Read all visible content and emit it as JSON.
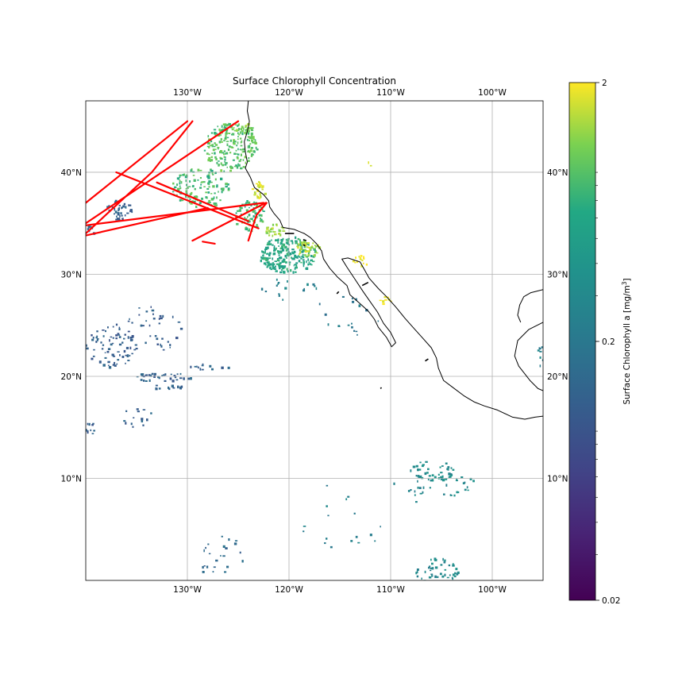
{
  "map": {
    "title": "Surface Chlorophyll Concentration",
    "lon_range": [
      -140,
      -95
    ],
    "lat_range": [
      0,
      47
    ],
    "lon_ticks": [
      {
        "value": -130,
        "label": "130°W"
      },
      {
        "value": -120,
        "label": "120°W"
      },
      {
        "value": -110,
        "label": "110°W"
      },
      {
        "value": -100,
        "label": "100°W"
      }
    ],
    "lat_ticks": [
      {
        "value": 10,
        "label": "10°N"
      },
      {
        "value": 20,
        "label": "20°N"
      },
      {
        "value": 30,
        "label": "30°N"
      },
      {
        "value": 40,
        "label": "40°N"
      }
    ],
    "grid": true,
    "colormap": "viridis",
    "track_color": "#ff0000",
    "coast_color": "#000000",
    "grid_color": "#b0b0b0"
  },
  "colorbar": {
    "label": "Surface Chlorophyll a [mg/m",
    "label_sup": "3",
    "label_end": "]",
    "scale": "log",
    "range": [
      0.02,
      2
    ],
    "ticks": [
      {
        "value": 0.02,
        "label": "0.02"
      },
      {
        "value": 0.2,
        "label": "0.2"
      },
      {
        "value": 2,
        "label": "2"
      }
    ]
  },
  "tracks": [
    [
      [
        -140,
        37.0
      ],
      [
        -130,
        45.0
      ]
    ],
    [
      [
        -140,
        34.0
      ],
      [
        -133.5,
        40.0
      ],
      [
        -129.5,
        45.0
      ]
    ],
    [
      [
        -140,
        35.0
      ],
      [
        -125,
        45.0
      ]
    ],
    [
      [
        -140,
        33.8
      ],
      [
        -128,
        36.5
      ]
    ],
    [
      [
        -140,
        34.8
      ],
      [
        -122.5,
        37.0
      ]
    ],
    [
      [
        -137,
        40.0
      ],
      [
        -123,
        34.5
      ]
    ],
    [
      [
        -133,
        39.0
      ],
      [
        -124,
        35.2
      ]
    ],
    [
      [
        -129.5,
        33.3
      ],
      [
        -122.3,
        37.0
      ]
    ],
    [
      [
        -128.5,
        33.2
      ],
      [
        -127.3,
        33.0
      ]
    ],
    [
      [
        -124,
        33.3
      ],
      [
        -123.2,
        35.8
      ],
      [
        -122.2,
        37.0
      ]
    ]
  ],
  "coastlines": [
    [
      [
        -124.0,
        47.0
      ],
      [
        -124.1,
        46.0
      ],
      [
        -123.9,
        45.0
      ],
      [
        -124.1,
        44.0
      ],
      [
        -124.4,
        43.0
      ],
      [
        -124.3,
        42.0
      ],
      [
        -124.1,
        41.0
      ],
      [
        -124.3,
        40.4
      ],
      [
        -123.8,
        39.5
      ],
      [
        -123.4,
        38.5
      ],
      [
        -122.5,
        37.8
      ],
      [
        -122.0,
        37.2
      ],
      [
        -121.9,
        36.6
      ],
      [
        -121.5,
        36.0
      ],
      [
        -120.9,
        35.3
      ],
      [
        -120.6,
        34.6
      ],
      [
        -119.5,
        34.4
      ],
      [
        -118.5,
        34.0
      ],
      [
        -117.9,
        33.6
      ],
      [
        -117.3,
        33.0
      ],
      [
        -116.8,
        32.3
      ],
      [
        -116.6,
        31.5
      ],
      [
        -116.0,
        30.6
      ],
      [
        -115.2,
        29.7
      ],
      [
        -114.3,
        28.9
      ],
      [
        -114.0,
        28.0
      ],
      [
        -113.2,
        27.3
      ],
      [
        -112.2,
        26.4
      ],
      [
        -111.6,
        25.6
      ],
      [
        -111.2,
        24.8
      ],
      [
        -110.4,
        23.8
      ],
      [
        -109.9,
        22.9
      ],
      [
        -109.5,
        23.3
      ],
      [
        -110.0,
        24.3
      ],
      [
        -110.7,
        25.2
      ],
      [
        -111.3,
        26.3
      ],
      [
        -112.0,
        27.3
      ],
      [
        -112.7,
        28.3
      ],
      [
        -113.5,
        29.5
      ],
      [
        -114.3,
        30.7
      ],
      [
        -114.8,
        31.5
      ],
      [
        -114.2,
        31.6
      ],
      [
        -113.0,
        31.2
      ],
      [
        -112.1,
        29.6
      ],
      [
        -111.2,
        28.6
      ],
      [
        -110.4,
        27.8
      ],
      [
        -109.5,
        26.8
      ],
      [
        -108.6,
        25.7
      ],
      [
        -107.8,
        24.8
      ],
      [
        -106.9,
        23.8
      ],
      [
        -106.0,
        22.8
      ],
      [
        -105.5,
        21.8
      ],
      [
        -105.3,
        20.8
      ],
      [
        -104.8,
        19.6
      ],
      [
        -104.0,
        19.0
      ],
      [
        -102.8,
        18.1
      ],
      [
        -101.8,
        17.5
      ],
      [
        -100.8,
        17.1
      ],
      [
        -99.5,
        16.7
      ],
      [
        -98.0,
        16.0
      ],
      [
        -96.8,
        15.8
      ],
      [
        -95.8,
        16.0
      ],
      [
        -95.0,
        16.1
      ]
    ],
    [
      [
        -95.0,
        25.3
      ],
      [
        -96.4,
        24.6
      ],
      [
        -97.5,
        23.5
      ],
      [
        -97.8,
        22.0
      ],
      [
        -97.4,
        21.0
      ],
      [
        -96.3,
        19.6
      ],
      [
        -95.5,
        18.8
      ],
      [
        -95.0,
        18.6
      ]
    ],
    [
      [
        -95.0,
        28.5
      ],
      [
        -96.2,
        28.2
      ],
      [
        -96.9,
        27.8
      ],
      [
        -97.3,
        27.0
      ],
      [
        -97.5,
        26.0
      ],
      [
        -97.2,
        25.3
      ]
    ]
  ],
  "islands": [
    [
      [
        -120.4,
        34.0
      ],
      [
        -119.5,
        34.0
      ]
    ],
    [
      [
        -118.6,
        33.4
      ],
      [
        -118.3,
        33.3
      ]
    ],
    [
      [
        -118.6,
        32.9
      ],
      [
        -118.4,
        32.8
      ]
    ],
    [
      [
        -115.3,
        28.1
      ],
      [
        -115.1,
        28.3
      ]
    ],
    [
      [
        -112.8,
        28.9
      ],
      [
        -112.2,
        29.2
      ]
    ],
    [
      [
        -106.6,
        21.5
      ],
      [
        -106.3,
        21.7
      ]
    ],
    [
      [
        -111.0,
        18.8
      ],
      [
        -110.9,
        18.9
      ]
    ]
  ],
  "chl_regions": [
    {
      "lon": -125.8,
      "lat": 42.5,
      "rx": 2.6,
      "ry": 2.4,
      "v": 0.9,
      "d": 0.6
    },
    {
      "lon": -124.6,
      "lat": 44.5,
      "rx": 1.2,
      "ry": 0.5,
      "v": 1.1,
      "d": 0.6
    },
    {
      "lon": -128.8,
      "lat": 38.5,
      "rx": 2.8,
      "ry": 2.0,
      "v": 0.8,
      "d": 0.42
    },
    {
      "lon": -123.0,
      "lat": 38.4,
      "rx": 0.7,
      "ry": 0.8,
      "v": 1.7,
      "d": 0.8
    },
    {
      "lon": -124.0,
      "lat": 35.7,
      "rx": 1.5,
      "ry": 1.6,
      "v": 0.8,
      "d": 0.55
    },
    {
      "lon": -120.2,
      "lat": 32.0,
      "rx": 2.8,
      "ry": 1.8,
      "v": 0.6,
      "d": 0.85
    },
    {
      "lon": -118.2,
      "lat": 32.6,
      "rx": 1.2,
      "ry": 0.8,
      "v": 1.4,
      "d": 0.8
    },
    {
      "lon": -121.5,
      "lat": 34.3,
      "rx": 1.0,
      "ry": 0.7,
      "v": 1.3,
      "d": 0.7
    },
    {
      "lon": -136.8,
      "lat": 36.4,
      "rx": 1.3,
      "ry": 1.0,
      "v": 0.12,
      "d": 0.55
    },
    {
      "lon": -139.6,
      "lat": 34.3,
      "rx": 0.4,
      "ry": 0.6,
      "v": 0.12,
      "d": 0.6
    },
    {
      "lon": -132.5,
      "lat": 20.0,
      "rx": 2.8,
      "ry": 0.5,
      "v": 0.12,
      "d": 0.45
    },
    {
      "lon": -131.5,
      "lat": 19.0,
      "rx": 2.0,
      "ry": 0.3,
      "v": 0.12,
      "d": 0.35
    },
    {
      "lon": -137.5,
      "lat": 23.0,
      "rx": 2.5,
      "ry": 2.0,
      "v": 0.11,
      "d": 0.22
    },
    {
      "lon": -134.0,
      "lat": 24.5,
      "rx": 3.5,
      "ry": 2.5,
      "v": 0.11,
      "d": 0.1
    },
    {
      "lon": -139.5,
      "lat": 15.0,
      "rx": 0.6,
      "ry": 0.6,
      "v": 0.11,
      "d": 0.5
    },
    {
      "lon": -135.0,
      "lat": 16.0,
      "rx": 2.0,
      "ry": 1.0,
      "v": 0.12,
      "d": 0.12
    },
    {
      "lon": -128.0,
      "lat": 21.0,
      "rx": 2.0,
      "ry": 0.3,
      "v": 0.12,
      "d": 0.35
    },
    {
      "lon": -106.0,
      "lat": 10.8,
      "rx": 2.2,
      "ry": 1.0,
      "v": 0.33,
      "d": 0.35
    },
    {
      "lon": -103.5,
      "lat": 9.5,
      "rx": 1.8,
      "ry": 1.5,
      "v": 0.3,
      "d": 0.12
    },
    {
      "lon": -108.0,
      "lat": 9.0,
      "rx": 2.0,
      "ry": 1.5,
      "v": 0.28,
      "d": 0.08
    },
    {
      "lon": -105.5,
      "lat": 1.0,
      "rx": 2.2,
      "ry": 1.3,
      "v": 0.3,
      "d": 0.3
    },
    {
      "lon": -114.0,
      "lat": 26.0,
      "rx": 4.0,
      "ry": 2.0,
      "v": 0.2,
      "d": 0.04
    },
    {
      "lon": -120.0,
      "lat": 28.5,
      "rx": 3.0,
      "ry": 1.2,
      "v": 0.25,
      "d": 0.08
    },
    {
      "lon": -95.3,
      "lat": 22.0,
      "rx": 0.4,
      "ry": 1.0,
      "v": 0.25,
      "d": 0.4
    },
    {
      "lon": -112.8,
      "lat": 31.5,
      "rx": 1.0,
      "ry": 0.6,
      "v": 2.0,
      "d": 0.45
    },
    {
      "lon": -110.7,
      "lat": 27.5,
      "rx": 0.6,
      "ry": 0.4,
      "v": 1.9,
      "d": 0.7
    },
    {
      "lon": -112.0,
      "lat": 41.0,
      "rx": 0.3,
      "ry": 0.3,
      "v": 1.8,
      "d": 0.4
    },
    {
      "lon": -127.0,
      "lat": 2.5,
      "rx": 3.0,
      "ry": 2.2,
      "v": 0.14,
      "d": 0.06
    },
    {
      "lon": -115.0,
      "lat": 6.0,
      "rx": 5.0,
      "ry": 4.0,
      "v": 0.25,
      "d": 0.015
    }
  ]
}
